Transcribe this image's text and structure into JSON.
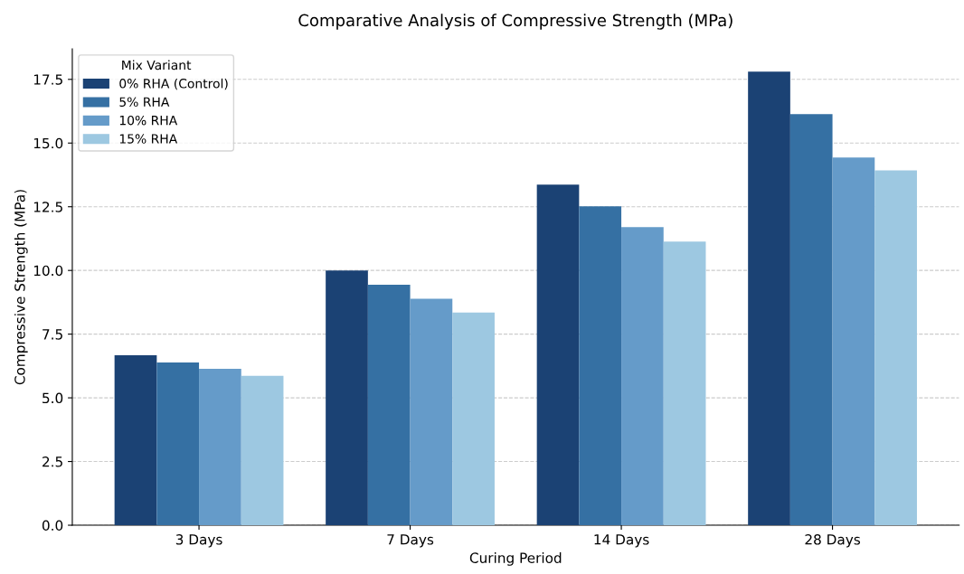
{
  "chart_data": {
    "type": "bar",
    "title": "Comparative Analysis of Compressive Strength (MPa)",
    "xlabel": "Curing Period",
    "ylabel": "Compressive Strength (MPa)",
    "categories": [
      "3 Days",
      "7 Days",
      "14 Days",
      "28 Days"
    ],
    "series": [
      {
        "name": "0% RHA (Control)",
        "color": "#1b4274",
        "values": [
          6.67,
          10.0,
          13.37,
          17.8
        ]
      },
      {
        "name": "5% RHA",
        "color": "#3570a3",
        "values": [
          6.39,
          9.44,
          12.52,
          16.14
        ]
      },
      {
        "name": "10% RHA",
        "color": "#659bc9",
        "values": [
          6.14,
          8.89,
          11.7,
          14.43
        ]
      },
      {
        "name": "15% RHA",
        "color": "#9dc8e1",
        "values": [
          5.86,
          8.35,
          11.13,
          13.93
        ]
      }
    ],
    "legend_title": "Mix Variant",
    "legend": "top left",
    "ylim": [
      0,
      18.7
    ],
    "yticks": [
      {
        "value": 0,
        "label": "0.0"
      },
      2.5,
      {
        "value": 5,
        "label": "5.0"
      },
      7.5,
      {
        "value": 10,
        "label": "10.0"
      },
      12.5,
      {
        "value": 15,
        "label": "15.0"
      },
      17.5
    ],
    "grid": "y"
  }
}
